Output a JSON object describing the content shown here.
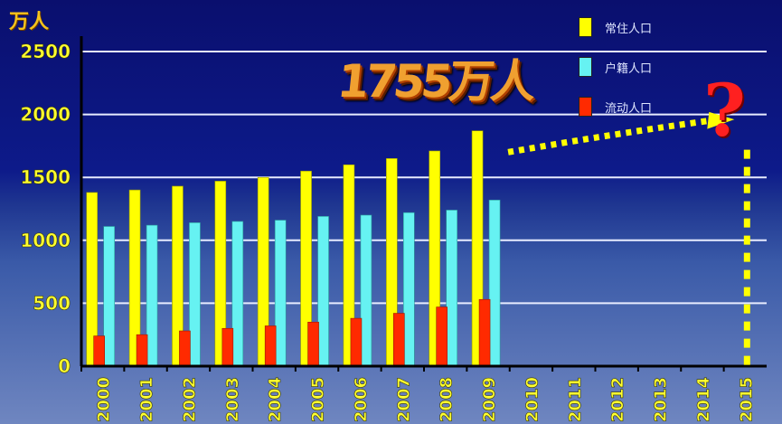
{
  "unit_label": "万人",
  "callout": "1755万人",
  "question_mark": "?",
  "legend": [
    {
      "label": "常住人口",
      "color": "#ffff00"
    },
    {
      "label": "户籍人口",
      "color": "#66f2f2"
    },
    {
      "label": "流动人口",
      "color": "#ff2a00"
    }
  ],
  "chart_data": {
    "type": "bar",
    "categories": [
      "2000",
      "2001",
      "2002",
      "2003",
      "2004",
      "2005",
      "2006",
      "2007",
      "2008",
      "2009",
      "2010",
      "2011",
      "2012",
      "2013",
      "2014",
      "2015"
    ],
    "series": [
      {
        "name": "常住人口",
        "color": "#ffff00",
        "values": [
          1380,
          1400,
          1430,
          1470,
          1500,
          1550,
          1600,
          1650,
          1710,
          1870,
          null,
          null,
          null,
          null,
          null,
          null
        ]
      },
      {
        "name": "户籍人口",
        "color": "#66f2f2",
        "values": [
          1110,
          1120,
          1140,
          1150,
          1160,
          1190,
          1200,
          1220,
          1240,
          1320,
          null,
          null,
          null,
          null,
          null,
          null
        ]
      },
      {
        "name": "流动人口",
        "color": "#ff2a00",
        "values": [
          240,
          250,
          280,
          300,
          320,
          350,
          380,
          420,
          470,
          530,
          null,
          null,
          null,
          null,
          null,
          null
        ]
      }
    ],
    "ylim": [
      0,
      2500
    ],
    "yticks": [
      0,
      500,
      1000,
      1500,
      2000,
      2500
    ],
    "grid": true,
    "legend_position": "top-right",
    "annotation": {
      "text": "1755万人",
      "target_year": "2015"
    }
  }
}
